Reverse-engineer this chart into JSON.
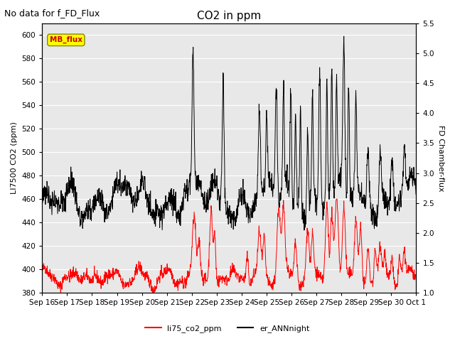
{
  "title": "CO2 in ppm",
  "subtitle": "No data for f_FD_Flux",
  "ylabel_left": "LI7500 CO2 (ppm)",
  "ylabel_right": "FD Chamber-flux",
  "ylim_left": [
    380,
    610
  ],
  "ylim_right": [
    1.0,
    5.5
  ],
  "yticks_left": [
    380,
    400,
    420,
    440,
    460,
    480,
    500,
    520,
    540,
    560,
    580,
    600
  ],
  "yticks_right": [
    1.0,
    1.5,
    2.0,
    2.5,
    3.0,
    3.5,
    4.0,
    4.5,
    5.0,
    5.5
  ],
  "xticklabels": [
    "Sep 16",
    "Sep 17",
    "Sep 18",
    "Sep 19",
    "Sep 20",
    "Sep 21",
    "Sep 22",
    "Sep 23",
    "Sep 24",
    "Sep 25",
    "Sep 26",
    "Sep 27",
    "Sep 28",
    "Sep 29",
    "Sep 30",
    "Oct 1"
  ],
  "legend_li75": "li75_co2_ppm",
  "legend_er": "er_ANNnight",
  "legend_mb": "MB_flux",
  "color_li75": "#ff0000",
  "color_er": "#000000",
  "color_mb_box": "#ffff00",
  "color_mb_text": "#cc0000",
  "background_color": "#e8e8e8",
  "grid_color": "#ffffff",
  "title_fontsize": 11,
  "subtitle_fontsize": 9,
  "label_fontsize": 8,
  "tick_fontsize": 7.5,
  "legend_fontsize": 8,
  "n_points": 1500
}
